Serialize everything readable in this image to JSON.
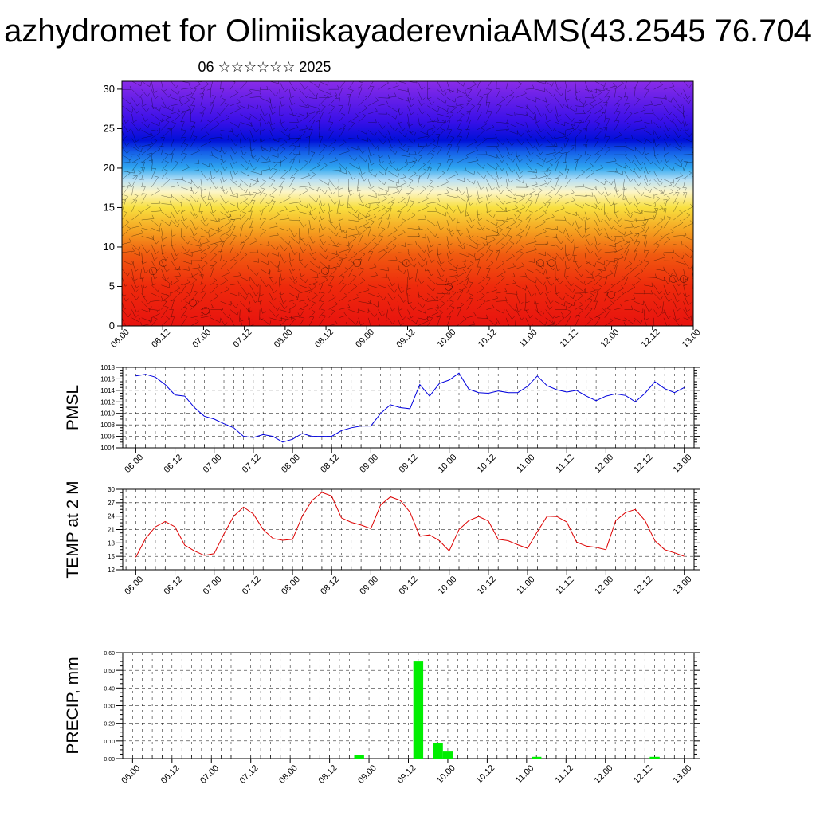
{
  "header": {
    "title": "azhydromet for OlimiiskayaderevniaAMS(43.2545 76.704",
    "subtitle": "06 ☆☆☆☆☆☆ 2025"
  },
  "colors": {
    "pmsl_line": "#0000dd",
    "temp_line": "#dd0000",
    "precip_bar": "#00ee00",
    "grid": "#000000"
  },
  "chart_data": [
    {
      "id": "profile",
      "type": "heatmap",
      "title": "",
      "xlabel": "",
      "ylabel": "",
      "ylim": [
        0,
        31
      ],
      "yticks": [
        0,
        5,
        10,
        15,
        20,
        25,
        30
      ],
      "xticks": [
        "06.00",
        "06.12",
        "07.00",
        "07.12",
        "08.00",
        "08.12",
        "09.00",
        "09.12",
        "10.00",
        "10.12",
        "11.00",
        "11.12",
        "12.00",
        "12.12",
        "13.00"
      ],
      "color_bands": [
        {
          "level": 0,
          "color": "#e8130f"
        },
        {
          "level": 5,
          "color": "#ee2a0c"
        },
        {
          "level": 9,
          "color": "#f05a10"
        },
        {
          "level": 12,
          "color": "#f5a020"
        },
        {
          "level": 15,
          "color": "#f8e040"
        },
        {
          "level": 17,
          "color": "#fcf5c8"
        },
        {
          "level": 18.5,
          "color": "#b8e0f5"
        },
        {
          "level": 20,
          "color": "#30a8f0"
        },
        {
          "level": 22,
          "color": "#1560e8"
        },
        {
          "level": 23.5,
          "color": "#0010d8"
        },
        {
          "level": 26,
          "color": "#3a10e8"
        },
        {
          "level": 31,
          "color": "#8a2ce8"
        }
      ],
      "overlay": "wind-barbs"
    },
    {
      "id": "pmsl",
      "type": "line",
      "title": "",
      "xlabel": "",
      "ylabel": "PMSL",
      "ylim": [
        1004,
        1018
      ],
      "yticks": [
        1004,
        1006,
        1008,
        1010,
        1012,
        1014,
        1016,
        1018
      ],
      "xticks": [
        "06.00",
        "06.12",
        "07.00",
        "07.12",
        "08.00",
        "08.12",
        "09.00",
        "09.12",
        "10.00",
        "10.12",
        "11.00",
        "11.12",
        "12.00",
        "12.12",
        "13.00"
      ],
      "x": [
        0,
        3,
        6,
        9,
        12,
        15,
        18,
        21,
        24,
        27,
        30,
        33,
        36,
        39,
        42,
        45,
        48,
        51,
        54,
        57,
        60,
        63,
        66,
        69,
        72,
        75,
        78,
        81,
        84,
        87,
        90,
        93,
        96,
        99,
        102,
        105,
        108,
        111,
        114,
        117,
        120,
        123,
        126,
        129,
        132,
        135,
        138,
        141,
        144,
        147,
        150,
        153,
        156,
        159,
        162,
        165,
        168
      ],
      "series": [
        {
          "name": "",
          "values": [
            1016.5,
            1016.8,
            1016.3,
            1015.0,
            1013.2,
            1013.0,
            1011.0,
            1009.5,
            1009.0,
            1008.2,
            1007.5,
            1006.0,
            1005.8,
            1006.3,
            1006.0,
            1005.0,
            1005.5,
            1006.5,
            1006.0,
            1006.0,
            1006.0,
            1007.0,
            1007.5,
            1007.8,
            1007.8,
            1010.0,
            1011.5,
            1011.0,
            1010.8,
            1015.0,
            1013.0,
            1015.2,
            1015.8,
            1017.0,
            1014.2,
            1013.6,
            1013.5,
            1013.9,
            1013.6,
            1013.6,
            1014.7,
            1016.5,
            1014.8,
            1014.1,
            1013.7,
            1014.0,
            1013.0,
            1012.2,
            1013.0,
            1013.4,
            1013.1,
            1012.0,
            1013.5,
            1015.5,
            1014.3,
            1013.6,
            1014.5
          ]
        }
      ]
    },
    {
      "id": "temp",
      "type": "line",
      "title": "",
      "xlabel": "",
      "ylabel": "TEMP at 2 M",
      "ylim": [
        12,
        30
      ],
      "yticks": [
        12,
        15,
        18,
        21,
        24,
        27,
        30
      ],
      "xticks": [
        "06.00",
        "06.12",
        "07.00",
        "07.12",
        "08.00",
        "08.12",
        "09.00",
        "09.12",
        "10.00",
        "10.12",
        "11.00",
        "11.12",
        "12.00",
        "12.12",
        "13.00"
      ],
      "x": [
        0,
        3,
        6,
        9,
        12,
        15,
        18,
        21,
        24,
        27,
        30,
        33,
        36,
        39,
        42,
        45,
        48,
        51,
        54,
        57,
        60,
        63,
        66,
        69,
        72,
        75,
        78,
        81,
        84,
        87,
        90,
        93,
        96,
        99,
        102,
        105,
        108,
        111,
        114,
        117,
        120,
        123,
        126,
        129,
        132,
        135,
        138,
        141,
        144,
        147,
        150,
        153,
        156,
        159,
        162,
        165,
        168
      ],
      "series": [
        {
          "name": "",
          "values": [
            14.8,
            19.0,
            21.6,
            22.8,
            21.6,
            17.5,
            16.2,
            15.2,
            15.6,
            20.0,
            24.0,
            26.0,
            24.5,
            21.0,
            19.0,
            18.6,
            18.8,
            24.0,
            27.5,
            29.3,
            28.5,
            23.6,
            22.6,
            22.0,
            21.2,
            26.5,
            28.3,
            27.5,
            24.9,
            19.5,
            19.8,
            18.5,
            16.2,
            21.0,
            23.0,
            23.9,
            22.9,
            18.8,
            18.5,
            17.6,
            16.8,
            20.5,
            24.0,
            23.9,
            22.7,
            18.2,
            17.3,
            17.0,
            16.5,
            23.0,
            24.8,
            25.5,
            23.0,
            18.5,
            16.5,
            15.8,
            15.0
          ]
        }
      ]
    },
    {
      "id": "precip",
      "type": "bar",
      "title": "",
      "xlabel": "",
      "ylabel": "PRECIP, mm",
      "ylim": [
        0,
        0.6
      ],
      "yticks": [
        "0.00",
        "0.10",
        "0.20",
        "0.30",
        "0.40",
        "0.50",
        "0.60"
      ],
      "xticks": [
        "06.00",
        "06.12",
        "07.00",
        "07.12",
        "08.00",
        "08.12",
        "09.00",
        "09.12",
        "10.00",
        "10.12",
        "11.00",
        "11.12",
        "12.00",
        "12.12",
        "13.00"
      ],
      "bars": [
        {
          "x": 69,
          "value": 0.02
        },
        {
          "x": 87,
          "value": 0.55
        },
        {
          "x": 93,
          "value": 0.09
        },
        {
          "x": 96,
          "value": 0.04
        },
        {
          "x": 123,
          "value": 0.01
        },
        {
          "x": 159,
          "value": 0.01
        }
      ]
    }
  ]
}
